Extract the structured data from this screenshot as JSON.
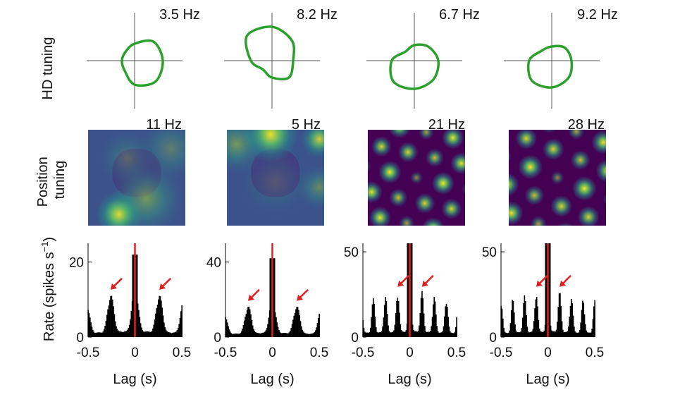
{
  "row_labels": {
    "hd": "HD tuning",
    "position_line1": "Position",
    "position_line2": "tuning",
    "rate": "Rate (spikes s",
    "rate_sup": "−1",
    "rate_close": ")"
  },
  "colors": {
    "hd_curve": "#2ca02c",
    "axis": "#555555",
    "bars": "#000000",
    "zero_lag_line": "#e02020",
    "arrow": "#e02020",
    "colormap": [
      "#440154",
      "#3b528b",
      "#21918c",
      "#5ec962",
      "#fde725"
    ]
  },
  "cells": [
    {
      "hd": {
        "peak_label": "3.5 Hz",
        "radii": [
          1.0,
          0.95,
          0.6,
          0.45,
          0.45,
          0.5,
          0.85,
          1.05
        ]
      },
      "position": {
        "peak_label": "11 Hz",
        "pattern": "diffuse",
        "fields": [
          [
            0.32,
            0.88,
            0.15,
            1.0
          ],
          [
            0.6,
            0.72,
            0.25,
            0.55
          ],
          [
            0.85,
            0.2,
            0.22,
            0.35
          ],
          [
            0.4,
            0.3,
            0.2,
            0.3
          ]
        ]
      },
      "acg": {
        "yticks": [
          0,
          20
        ],
        "ymax": 25,
        "peak_value": 22,
        "side_peak_value": 11.5,
        "period": 0.26,
        "xticks": [
          "-0.5",
          "0",
          "0.5"
        ],
        "xlabel": "Lag (s)"
      }
    },
    {
      "hd": {
        "peak_label": "8.2 Hz",
        "radii": [
          0.75,
          1.0,
          1.2,
          1.25,
          0.75,
          0.45,
          0.6,
          0.85
        ]
      },
      "position": {
        "peak_label": "5 Hz",
        "pattern": "diffuse",
        "fields": [
          [
            0.45,
            0.05,
            0.18,
            0.95
          ],
          [
            0.95,
            0.1,
            0.12,
            0.8
          ],
          [
            0.1,
            0.15,
            0.2,
            0.55
          ],
          [
            0.95,
            0.6,
            0.15,
            0.45
          ],
          [
            0.5,
            0.55,
            0.25,
            0.2
          ]
        ]
      },
      "acg": {
        "yticks": [
          0,
          40
        ],
        "ymax": 50,
        "peak_value": 42,
        "side_peak_value": 17,
        "period": 0.26,
        "xticks": [
          "-0.5",
          "0",
          "0.5"
        ],
        "xlabel": "Lag (s)"
      }
    },
    {
      "hd": {
        "peak_label": "6.7 Hz",
        "radii": [
          0.85,
          0.7,
          0.55,
          0.45,
          0.8,
          1.05,
          1.0,
          0.95
        ]
      },
      "position": {
        "peak_label": "21 Hz",
        "pattern": "grid",
        "spacing": 0.28,
        "angle": 12
      },
      "acg": {
        "yticks": [
          0,
          50
        ],
        "ymax": 55,
        "peak_value": 60,
        "side_peak_value": 27,
        "period": 0.13,
        "xticks": [
          "-0.5",
          "0",
          "0.5"
        ],
        "xlabel": "Lag (s)"
      }
    },
    {
      "hd": {
        "peak_label": "9.2 Hz",
        "radii": [
          0.7,
          0.65,
          0.5,
          0.5,
          0.8,
          1.0,
          0.95,
          0.85
        ]
      },
      "position": {
        "peak_label": "28 Hz",
        "pattern": "grid",
        "spacing": 0.3,
        "angle": 22
      },
      "acg": {
        "yticks": [
          0,
          50
        ],
        "ymax": 55,
        "peak_value": 60,
        "side_peak_value": 27,
        "period": 0.125,
        "xticks": [
          "-0.5",
          "0",
          "0.5"
        ],
        "xlabel": "Lag (s)"
      }
    }
  ],
  "chart_data": [
    {
      "type": "line",
      "xlabel": "",
      "ylabel": "HD tuning",
      "cells_peak_rates_hz": [
        3.5,
        8.2,
        6.7,
        9.2
      ]
    },
    {
      "type": "heatmap",
      "xlabel": "",
      "ylabel": "Position tuning",
      "cells_peak_rates_hz": [
        11,
        5,
        21,
        28
      ]
    },
    {
      "type": "bar",
      "xlabel": "Lag (s)",
      "ylabel": "Rate (spikes s−1)",
      "xlim": [
        -0.5,
        0.5
      ],
      "series": [
        {
          "ylim": [
            0,
            25
          ],
          "yticks": [
            0,
            20
          ],
          "central_peak": 22,
          "side_peaks_at_lag": [
            -0.26,
            0.26
          ],
          "side_peak_value": 11.5
        },
        {
          "ylim": [
            0,
            50
          ],
          "yticks": [
            0,
            40
          ],
          "central_peak": 42,
          "side_peaks_at_lag": [
            -0.26,
            0.26
          ],
          "side_peak_value": 17
        },
        {
          "ylim": [
            0,
            55
          ],
          "yticks": [
            0,
            50
          ],
          "central_peak": 60,
          "side_peaks_at_lag": [
            -0.26,
            0.26
          ],
          "side_peak_value": 27
        },
        {
          "ylim": [
            0,
            55
          ],
          "yticks": [
            0,
            50
          ],
          "central_peak": 60,
          "side_peaks_at_lag": [
            -0.25,
            0.25
          ],
          "side_peak_value": 27
        }
      ]
    }
  ]
}
